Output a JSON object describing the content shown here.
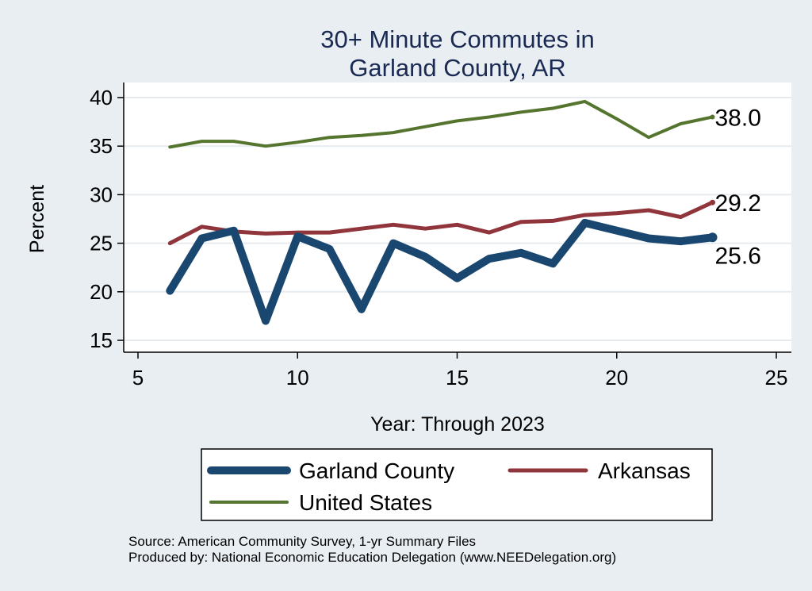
{
  "chart_data": {
    "type": "line",
    "title": [
      "30+ Minute Commutes in",
      "Garland County, AR"
    ],
    "xlabel": "Year: Through 2023",
    "ylabel": "Percent",
    "xlim": [
      5,
      25
    ],
    "ylim": [
      14,
      41
    ],
    "xticks": [
      5,
      10,
      15,
      20,
      25
    ],
    "yticks": [
      15,
      20,
      25,
      30,
      35,
      40
    ],
    "grid": true,
    "legend_position": "bottom",
    "series": [
      {
        "name": "Garland County",
        "color": "#1a476f",
        "width": "thick",
        "x": [
          6,
          7,
          8,
          9,
          10,
          11,
          12,
          13,
          14,
          15,
          16,
          17,
          18,
          19,
          20,
          21,
          22,
          23
        ],
        "y": [
          20.1,
          25.5,
          26.3,
          17.0,
          25.7,
          24.4,
          18.2,
          25.0,
          23.6,
          21.4,
          23.4,
          24.0,
          22.9,
          27.1,
          26.3,
          25.5,
          25.2,
          25.6
        ],
        "end_label": "25.6"
      },
      {
        "name": "Arkansas",
        "color": "#90353b",
        "width": "medium",
        "x": [
          6,
          7,
          8,
          9,
          10,
          11,
          12,
          13,
          14,
          15,
          16,
          17,
          18,
          19,
          20,
          21,
          22,
          23
        ],
        "y": [
          25.0,
          26.7,
          26.2,
          26.0,
          26.1,
          26.1,
          26.5,
          26.9,
          26.5,
          26.9,
          26.1,
          27.2,
          27.3,
          27.9,
          28.1,
          28.4,
          27.7,
          29.2
        ],
        "end_label": "29.2"
      },
      {
        "name": "United States",
        "color": "#55752f",
        "width": "thin",
        "x": [
          6,
          7,
          8,
          9,
          10,
          11,
          12,
          13,
          14,
          15,
          16,
          17,
          18,
          19,
          20,
          21,
          22,
          23
        ],
        "y": [
          34.9,
          35.5,
          35.5,
          35.0,
          35.4,
          35.9,
          36.1,
          36.4,
          37.0,
          37.6,
          38.0,
          38.5,
          38.9,
          39.6,
          37.8,
          35.9,
          37.3,
          38.0
        ],
        "end_label": "38.0"
      }
    ],
    "legend": [
      "Garland County",
      "Arkansas",
      "United States"
    ],
    "notes": [
      "Source: American Community Survey, 1-yr Summary Files",
      "Produced by: National Economic Education Delegation (www.NEEDelegation.org)"
    ]
  }
}
